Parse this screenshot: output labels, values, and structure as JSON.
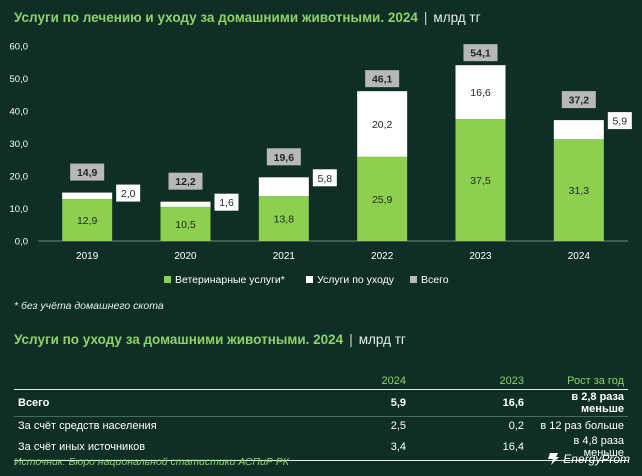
{
  "header": {
    "title": "Услуги по лечению и уходу за домашними животными. 2024",
    "separator": "|",
    "unit": "млрд тг"
  },
  "chart_data": {
    "type": "bar",
    "stacked": true,
    "categories": [
      "2019",
      "2020",
      "2021",
      "2022",
      "2023",
      "2024"
    ],
    "series": [
      {
        "name": "Ветеринарные услуги*",
        "color": "#8dcf4f",
        "values": [
          12.9,
          10.5,
          13.8,
          25.9,
          37.5,
          31.3
        ],
        "labels": [
          "12,9",
          "10,5",
          "13,8",
          "25,9",
          "37,5",
          "31,3"
        ]
      },
      {
        "name": "Услуги по уходу",
        "color": "#ffffff",
        "values": [
          2.0,
          1.6,
          5.8,
          20.2,
          16.6,
          5.9
        ],
        "labels": [
          "2,0",
          "1,6",
          "5,8",
          "20,2",
          "16,6",
          "5,9"
        ]
      }
    ],
    "totals": {
      "name": "Всего",
      "color": "#b8b8b8",
      "values": [
        14.9,
        12.2,
        19.6,
        46.1,
        54.1,
        37.2
      ],
      "labels": [
        "14,9",
        "12,2",
        "19,6",
        "46,1",
        "54,1",
        "37,2"
      ]
    },
    "ylim": [
      0,
      60
    ],
    "yticks": [
      "0,0",
      "10,0",
      "20,0",
      "30,0",
      "40,0",
      "50,0",
      "60,0"
    ],
    "grid": false,
    "legend_position": "bottom"
  },
  "footnote": "* без учёта домашнего скота",
  "table_section": {
    "title": "Услуги по уходу за домашними животными. 2024",
    "separator": "|",
    "unit": "млрд тг",
    "columns": [
      "",
      "2024",
      "2023",
      "Рост за год"
    ],
    "rows": [
      {
        "label": "Всего",
        "v2024": "5,9",
        "v2023": "16,6",
        "change": "в 2,8 раза меньше"
      },
      {
        "label": "За счёт средств населения",
        "v2024": "2,5",
        "v2023": "0,2",
        "change": "в 12 раз больше"
      },
      {
        "label": "За счёт иных источников",
        "v2024": "3,4",
        "v2023": "16,4",
        "change": "в 4,8 раза меньше"
      }
    ]
  },
  "source": "Источник: Бюро национальной статистики АСПиР РК",
  "logo_text": "EnergyProm"
}
